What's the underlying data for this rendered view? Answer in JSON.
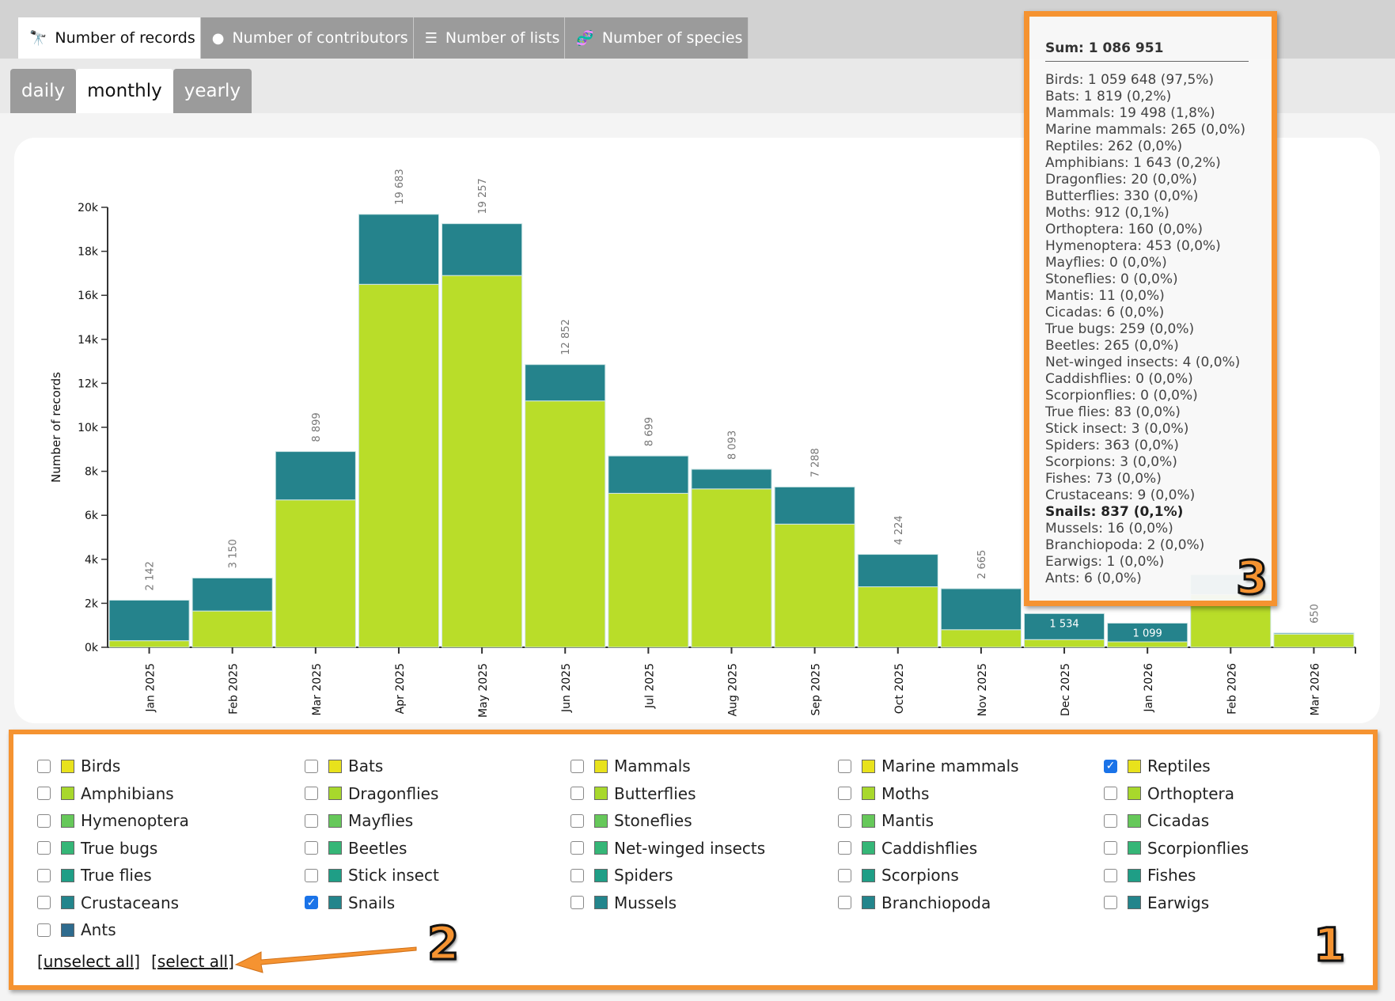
{
  "tabs": [
    {
      "label": "Number of records",
      "icon": "binoculars-icon",
      "active": true
    },
    {
      "label": "Number of contributors",
      "icon": "user-icon"
    },
    {
      "label": "Number of lists",
      "icon": "list-icon"
    },
    {
      "label": "Number of species",
      "icon": "dna-icon"
    }
  ],
  "subtabs": [
    {
      "label": "daily"
    },
    {
      "label": "monthly",
      "active": true
    },
    {
      "label": "yearly"
    }
  ],
  "chart_data": {
    "type": "bar",
    "stacked": true,
    "ylabel": "Number of records",
    "ylim": [
      0,
      20000
    ],
    "yticks": [
      "0k",
      "2k",
      "4k",
      "6k",
      "8k",
      "10k",
      "12k",
      "14k",
      "16k",
      "18k",
      "20k"
    ],
    "categories": [
      "Jan 2025",
      "Feb 2025",
      "Mar 2025",
      "Apr 2025",
      "May 2025",
      "Jun 2025",
      "Jul 2025",
      "Aug 2025",
      "Sep 2025",
      "Oct 2025",
      "Nov 2025",
      "Dec 2025",
      "Jan 2026",
      "Feb 2026",
      "Mar 2026"
    ],
    "totals": [
      2142,
      3150,
      8899,
      19683,
      19257,
      12852,
      8699,
      8093,
      7288,
      4224,
      2665,
      1534,
      1099,
      3300,
      650
    ],
    "total_labels": [
      "2 142",
      "3 150",
      "8 899",
      "19 683",
      "19 257",
      "12 852",
      "8 699",
      "8 093",
      "7 288",
      "4 224",
      "2 665",
      "1 534",
      "1 099",
      "",
      "650"
    ],
    "series": [
      {
        "name": "Reptiles",
        "color": "#b9dd29",
        "values": [
          300,
          1650,
          6700,
          16500,
          16900,
          11200,
          7000,
          7200,
          5600,
          2750,
          800,
          350,
          250,
          2400,
          600
        ]
      },
      {
        "name": "Snails",
        "color": "#25838c",
        "values": [
          1842,
          1500,
          2199,
          3183,
          2357,
          1652,
          1699,
          893,
          1688,
          1474,
          1865,
          1184,
          849,
          900,
          50
        ]
      }
    ]
  },
  "tooltip": {
    "sum": "Sum: 1 086 951",
    "rows": [
      "Birds: 1 059 648 (97,5%)",
      "Bats: 1 819 (0,2%)",
      "Mammals: 19 498 (1,8%)",
      "Marine mammals: 265 (0,0%)",
      "Reptiles: 262 (0,0%)",
      "Amphibians: 1 643 (0,2%)",
      "Dragonflies: 20 (0,0%)",
      "Butterflies: 330 (0,0%)",
      "Moths: 912 (0,1%)",
      "Orthoptera: 160 (0,0%)",
      "Hymenoptera: 453 (0,0%)",
      "Mayflies: 0 (0,0%)",
      "Stoneflies: 0 (0,0%)",
      "Mantis: 11 (0,0%)",
      "Cicadas: 6 (0,0%)",
      "True bugs: 259 (0,0%)",
      "Beetles: 265 (0,0%)",
      "Net-winged insects: 4 (0,0%)",
      "Caddishflies: 0 (0,0%)",
      "Scorpionflies: 0 (0,0%)",
      "True flies: 83 (0,0%)",
      "Stick insect: 3 (0,0%)",
      "Spiders: 363 (0,0%)",
      "Scorpions: 3 (0,0%)",
      "Fishes: 73 (0,0%)",
      "Crustaceans: 9 (0,0%)",
      "Snails: 837 (0,1%)",
      "Mussels: 16 (0,0%)",
      "Branchiopoda: 2 (0,0%)",
      "Earwigs: 1 (0,0%)",
      "Ants: 6 (0,0%)"
    ],
    "highlight": "Snails: 837 (0,1%)"
  },
  "legend": {
    "items": [
      "Birds",
      "Bats",
      "Mammals",
      "Marine mammals",
      "Reptiles",
      "Amphibians",
      "Dragonflies",
      "Butterflies",
      "Moths",
      "Orthoptera",
      "Hymenoptera",
      "Mayflies",
      "Stoneflies",
      "Mantis",
      "Cicadas",
      "True bugs",
      "Beetles",
      "Net-winged insects",
      "Caddishflies",
      "Scorpionflies",
      "True flies",
      "Stick insect",
      "Spiders",
      "Scorpions",
      "Fishes",
      "Crustaceans",
      "Snails",
      "Mussels",
      "Branchiopoda",
      "Earwigs",
      "Ants"
    ],
    "checked": [
      "Reptiles",
      "Snails"
    ],
    "row_colors": [
      "#e8e21c",
      "#a8d82c",
      "#66c85a",
      "#35b677",
      "#1f9e86",
      "#23858c",
      "#2e6b8e"
    ],
    "unselect_all": "[unselect all]",
    "select_all": "[select all]"
  },
  "annotations": {
    "one": "1",
    "two": "2",
    "three": "3",
    "accent": "#f59331"
  }
}
